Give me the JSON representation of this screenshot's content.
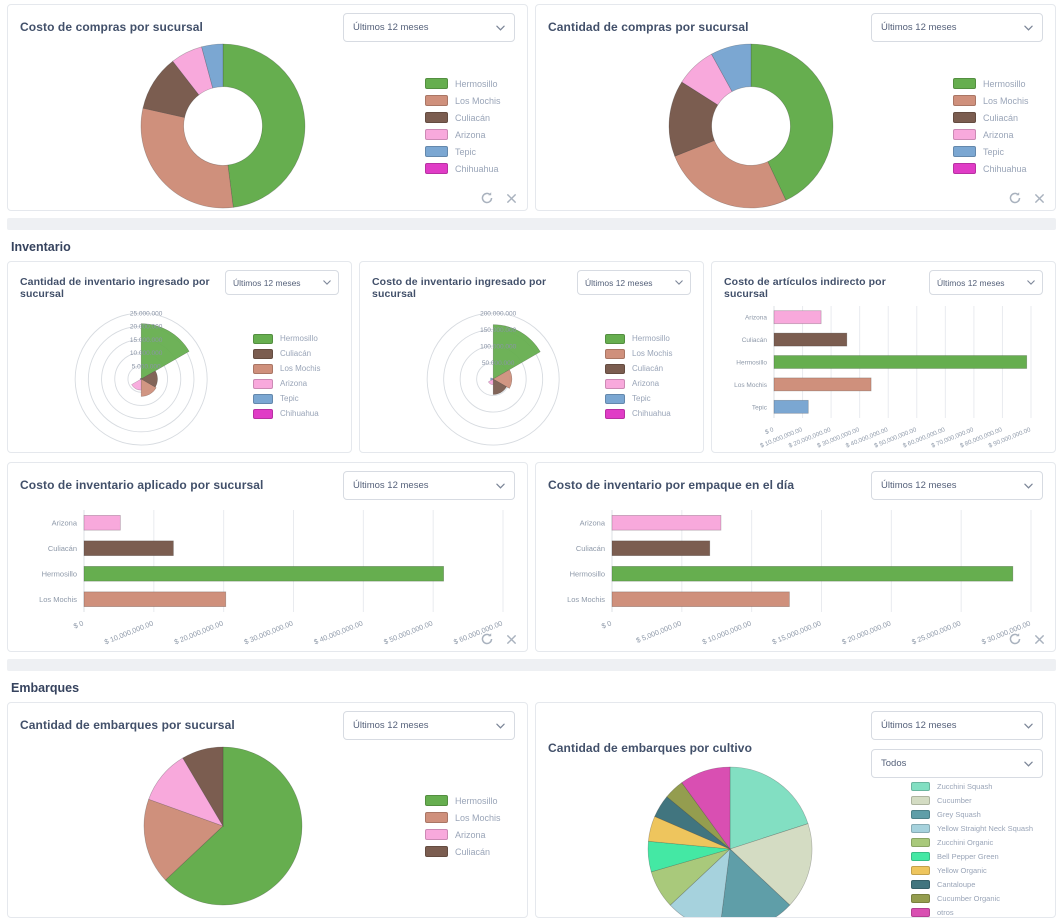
{
  "sections": {
    "inventario": {
      "heading": "Inventario"
    },
    "embarques": {
      "heading": "Embarques"
    }
  },
  "ui_colors": {
    "card_border": "#e5e8ed",
    "title_text": "#42506a",
    "legend_text": "#9aa5b8",
    "axis_text": "#8e99a9",
    "separator": "#eef0f3",
    "icon_gray": "#a9b2be"
  },
  "chart_data": [
    {
      "id": "costo-compras-por-sucursal",
      "type": "donut",
      "title": "Costo de compras por sucursal",
      "filter": "Últimos 12 meses",
      "legend_position": "right",
      "categories": [
        "Hermosillo",
        "Los Mochis",
        "Culiacán",
        "Arizona",
        "Tepic",
        "Chihuahua"
      ],
      "values": [
        48,
        30.5,
        11,
        6.3,
        4.2,
        0
      ],
      "value_unit": "percent-of-total (estimated from arc angles)",
      "colors": [
        "#66ae4f",
        "#cf907c",
        "#7b5d50",
        "#f8a9dc",
        "#7ba7d2",
        "#e03cc6"
      ]
    },
    {
      "id": "cantidad-compras-por-sucursal",
      "type": "donut",
      "title": "Cantidad de compras por sucursal",
      "filter": "Últimos 12 meses",
      "legend_position": "right",
      "categories": [
        "Hermosillo",
        "Los Mochis",
        "Culiacán",
        "Arizona",
        "Tepic",
        "Chihuahua"
      ],
      "values": [
        43,
        26,
        15,
        8,
        8,
        0
      ],
      "value_unit": "percent-of-total (estimated from arc angles)",
      "colors": [
        "#66ae4f",
        "#cf907c",
        "#7b5d50",
        "#f8a9dc",
        "#7ba7d2",
        "#e03cc6"
      ]
    },
    {
      "id": "cantidad-inventario-ingresado-por-sucursal",
      "type": "polar",
      "title": "Cantidad de inventario ingresado por sucursal",
      "filter": "Últimos 12 meses",
      "legend_position": "right",
      "categories": [
        "Hermosillo",
        "Culiacán",
        "Los Mochis",
        "Arizona",
        "Tepic",
        "Chihuahua"
      ],
      "values": [
        21000000,
        6200000,
        6600000,
        4200000,
        400000,
        300000
      ],
      "ring_labels": [
        "25.000.000",
        "20.000.000",
        "15.000.000",
        "10.000.000",
        "5.000.000"
      ],
      "ring_max": 25000000,
      "colors": [
        "#66ae4f",
        "#7b5d50",
        "#cf907c",
        "#f8a9dc",
        "#7ba7d2",
        "#e03cc6"
      ]
    },
    {
      "id": "costo-inventario-ingresado-por-sucursal",
      "type": "polar",
      "title": "Costo de inventario ingresado por sucursal",
      "filter": "Últimos 12 meses",
      "legend_position": "right",
      "categories": [
        "Hermosillo",
        "Los Mochis",
        "Culiacán",
        "Arizona",
        "Tepic",
        "Chihuahua"
      ],
      "values": [
        165000000,
        57000000,
        47000000,
        17000000,
        8000000,
        2000000
      ],
      "ring_labels": [
        "200.000.000",
        "150.000.000",
        "100.000.000",
        "50.000.000"
      ],
      "ring_max": 200000000,
      "colors": [
        "#66ae4f",
        "#cf907c",
        "#7b5d50",
        "#f8a9dc",
        "#7ba7d2",
        "#e03cc6"
      ]
    },
    {
      "id": "costo-articulos-indirecto-por-sucursal",
      "type": "hbar",
      "title": "Costo de artículos indirecto por sucursal",
      "filter": "Últimos 12 meses",
      "categories": [
        "Arizona",
        "Culiacán",
        "Hermosillo",
        "Los Mochis",
        "Tepic"
      ],
      "values": [
        16500000,
        25500000,
        88500000,
        34000000,
        12000000
      ],
      "colors": [
        "#f8a9dc",
        "#7b5d50",
        "#66ae4f",
        "#cf907c",
        "#7ba7d2"
      ],
      "xticks": [
        "$ 0",
        "$ 10,000,000.00",
        "$ 20,000,000.00",
        "$ 30,000,000.00",
        "$ 40,000,000.00",
        "$ 50,000,000.00",
        "$ 60,000,000.00",
        "$ 70,000,000.00",
        "$ 80,000,000.00",
        "$ 90,000,000.00"
      ],
      "xmax": 90000000
    },
    {
      "id": "costo-inventario-aplicado-por-sucursal",
      "type": "hbar",
      "title": "Costo de inventario aplicado por sucursal",
      "filter": "Últimos 12 meses",
      "categories": [
        "Arizona",
        "Culiacán",
        "Hermosillo",
        "Los Mochis"
      ],
      "values": [
        5200000,
        12800000,
        51500000,
        20300000
      ],
      "colors": [
        "#f8a9dc",
        "#7b5d50",
        "#66ae4f",
        "#cf907c"
      ],
      "xticks": [
        "$ 0",
        "$ 10,000,000.00",
        "$ 20,000,000.00",
        "$ 30,000,000.00",
        "$ 40,000,000.00",
        "$ 50,000,000.00",
        "$ 60,000,000.00"
      ],
      "xmax": 60000000
    },
    {
      "id": "costo-inventario-por-empaque-en-el-dia",
      "type": "hbar",
      "title": "Costo de inventario por empaque en el día",
      "filter": "Últimos 12 meses",
      "categories": [
        "Arizona",
        "Culiacán",
        "Hermosillo",
        "Los Mochis"
      ],
      "values": [
        7800000,
        7000000,
        28700000,
        12700000
      ],
      "colors": [
        "#f8a9dc",
        "#7b5d50",
        "#66ae4f",
        "#cf907c"
      ],
      "xticks": [
        "$ 0",
        "$ 5,000,000.00",
        "$ 10,000,000.00",
        "$ 15,000,000.00",
        "$ 20,000,000.00",
        "$ 25,000,000.00",
        "$ 30,000,000.00"
      ],
      "xmax": 30000000
    },
    {
      "id": "cantidad-embarques-por-sucursal",
      "type": "pie",
      "title": "Cantidad de embarques por sucursal",
      "filter": "Últimos 12 meses",
      "legend_position": "right",
      "categories": [
        "Hermosillo",
        "Los Mochis",
        "Arizona",
        "Culiacán"
      ],
      "values": [
        63,
        17.5,
        11,
        8.5
      ],
      "value_unit": "percent-of-total (estimated from arc angles)",
      "colors": [
        "#66ae4f",
        "#cf907c",
        "#f8a9dc",
        "#7b5d50"
      ]
    },
    {
      "id": "cantidad-embarques-por-cultivo",
      "type": "pie",
      "title": "Cantidad de embarques por cultivo",
      "filter": "Últimos 12 meses",
      "filter2": "Todos",
      "legend_position": "right",
      "categories": [
        "Zucchini Squash",
        "Cucumber",
        "Grey Squash",
        "Yellow Straight Neck Squash",
        "Zucchini Organic",
        "Bell Pepper Green",
        "Yellow Organic",
        "Cantaloupe",
        "Cucumber Organic",
        "otros"
      ],
      "values": [
        20,
        17,
        15,
        11,
        7.5,
        6,
        5,
        4.5,
        4,
        10
      ],
      "value_unit": "percent-of-total (estimated from arc angles)",
      "colors": [
        "#82dfc2",
        "#d4dcc3",
        "#5f9ea8",
        "#a6d2dd",
        "#a9c97b",
        "#44e8a4",
        "#eec55d",
        "#41757f",
        "#949d4f",
        "#d94fb2"
      ]
    }
  ]
}
